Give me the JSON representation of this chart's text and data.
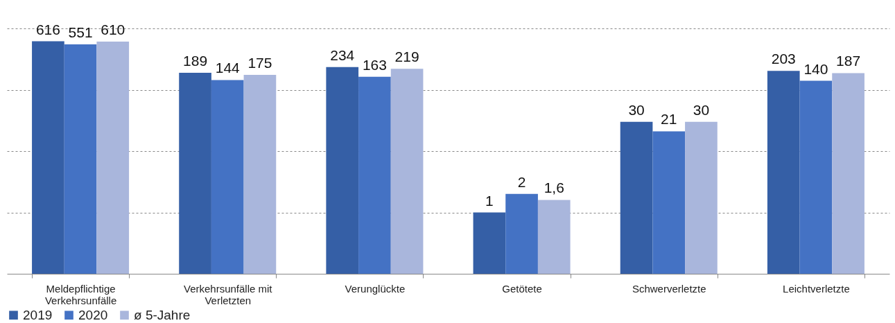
{
  "chart_data": {
    "type": "bar",
    "categories": [
      "Meldepflichtige Verkehrsunfälle",
      "Verkehrsunfälle mit Verletzten",
      "Verunglückte",
      "Getötete",
      "Schwerverletzte",
      "Leichtverletzte"
    ],
    "series": [
      {
        "name": "2019",
        "color": "#355fa6",
        "values": [
          616,
          189,
          234,
          1,
          30,
          203
        ],
        "value_labels": [
          "616",
          "189",
          "234",
          "1",
          "30",
          "203"
        ]
      },
      {
        "name": "2020",
        "color": "#4472c4",
        "values": [
          551,
          144,
          163,
          2,
          21,
          140
        ],
        "value_labels": [
          "551",
          "144",
          "163",
          "2",
          "21",
          "140"
        ]
      },
      {
        "name": "ø 5-Jahre",
        "color": "#a9b6dc",
        "values": [
          610,
          175,
          219,
          1.6,
          30,
          187
        ],
        "value_labels": [
          "610",
          "175",
          "219",
          "1,6",
          "30",
          "187"
        ]
      }
    ],
    "log": true,
    "ylim": [
      0.1,
      1000
    ],
    "yticks": [
      {
        "value": 1,
        "label": null
      },
      {
        "value": 10,
        "label": null
      },
      {
        "value": 100,
        "label": null
      },
      {
        "value": 1000,
        "label": null
      }
    ],
    "grid": "y",
    "tick_labels": "x",
    "legend": "bottom"
  }
}
